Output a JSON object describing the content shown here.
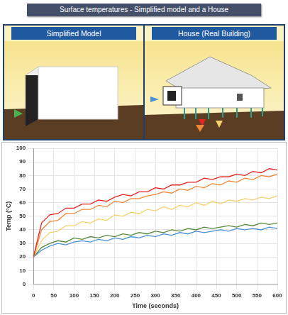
{
  "header": {
    "title": "Surface temperatures - Simplified model and a House"
  },
  "panels": [
    {
      "label": "Simplified Model"
    },
    {
      "label": "House (Real Building)"
    }
  ],
  "chart_data": {
    "type": "line",
    "x_label": "Time (seconds)",
    "y_label": "Temp (°C)",
    "x": [
      0,
      20,
      40,
      60,
      80,
      100,
      120,
      140,
      160,
      180,
      200,
      220,
      240,
      260,
      280,
      300,
      320,
      340,
      360,
      380,
      400,
      420,
      440,
      460,
      480,
      500,
      520,
      540,
      560,
      580,
      600
    ],
    "series": [
      {
        "color": "#e8231f",
        "values": [
          20,
          45,
          51,
          52,
          56,
          56,
          59,
          59,
          62,
          61,
          64,
          66,
          65,
          68,
          68,
          71,
          70,
          73,
          73,
          75,
          75,
          78,
          77,
          79,
          79,
          81,
          80,
          83,
          82,
          85,
          84
        ]
      },
      {
        "color": "#f0883a",
        "values": [
          20,
          40,
          46,
          47,
          52,
          52,
          55,
          55,
          58,
          57,
          61,
          60,
          63,
          63,
          65,
          66,
          68,
          67,
          70,
          69,
          72,
          71,
          74,
          73,
          76,
          75,
          78,
          77,
          80,
          79,
          81
        ]
      },
      {
        "color": "#f5d16e",
        "values": [
          20,
          32,
          38,
          39,
          43,
          43,
          46,
          45,
          48,
          47,
          51,
          50,
          53,
          52,
          55,
          54,
          57,
          55,
          58,
          57,
          60,
          58,
          61,
          59,
          62,
          61,
          63,
          62,
          64,
          63,
          65
        ]
      },
      {
        "color": "#5b8a3c",
        "values": [
          20,
          27,
          30,
          32,
          31,
          34,
          33,
          35,
          34,
          36,
          35,
          37,
          36,
          38,
          37,
          39,
          38,
          40,
          39,
          41,
          40,
          42,
          41,
          42,
          43,
          42,
          44,
          43,
          45,
          44,
          45
        ]
      },
      {
        "color": "#4a90d9",
        "values": [
          20,
          25,
          28,
          30,
          29,
          31,
          32,
          31,
          33,
          32,
          34,
          33,
          35,
          34,
          36,
          35,
          37,
          36,
          38,
          37,
          39,
          38,
          39,
          40,
          39,
          41,
          40,
          41,
          40,
          42,
          41
        ]
      }
    ],
    "xlim": [
      0,
      600
    ],
    "xticks": [
      0,
      50,
      100,
      150,
      200,
      250,
      300,
      350,
      400,
      450,
      500,
      550,
      600
    ],
    "ylim": [
      0,
      100
    ],
    "yticks": [
      0,
      10,
      20,
      30,
      40,
      50,
      60,
      70,
      80,
      90,
      100
    ],
    "grid": true
  }
}
